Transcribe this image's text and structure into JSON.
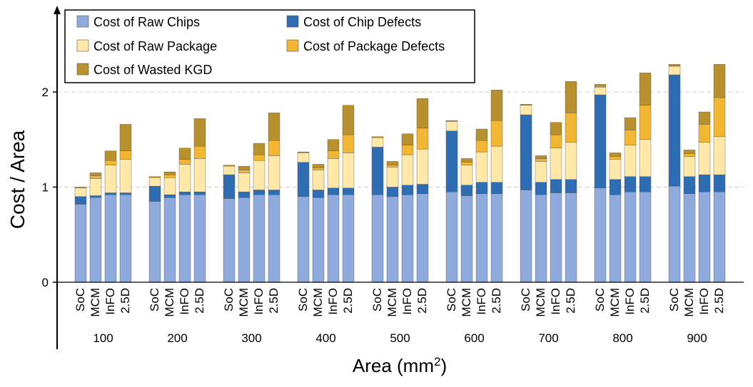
{
  "chart_data": {
    "type": "stacked_bar",
    "ylabel": "Cost / Area",
    "xlabel_main": "Area (mm",
    "xlabel_sup": "2",
    "xlabel_close": ")",
    "ylim": [
      0,
      2.55
    ],
    "yticks": [
      "0",
      "1",
      "2"
    ],
    "legend_position": "top-left",
    "layers": [
      {
        "key": "raw_chips",
        "name": "Cost of Raw Chips",
        "color": "#8FAADC"
      },
      {
        "key": "chip_defects",
        "name": "Cost of Chip Defects",
        "color": "#2E6DB4"
      },
      {
        "key": "raw_package",
        "name": "Cost of Raw Package",
        "color": "#FFE8A8"
      },
      {
        "key": "package_defects",
        "name": "Cost of Package Defects",
        "color": "#F2B632"
      },
      {
        "key": "wasted_kgd",
        "name": "Cost of Wasted KGD",
        "color": "#B8902E"
      }
    ],
    "groups": [
      {
        "label": "100",
        "bars": [
          {
            "name": "SoC",
            "raw_chips": 0.82,
            "chip_defects": 0.08,
            "raw_package": 0.09,
            "package_defects": 0.0,
            "wasted_kgd": 0.01
          },
          {
            "name": "MCM",
            "raw_chips": 0.89,
            "chip_defects": 0.02,
            "raw_package": 0.18,
            "package_defects": 0.03,
            "wasted_kgd": 0.03
          },
          {
            "name": "InFO",
            "raw_chips": 0.92,
            "chip_defects": 0.02,
            "raw_package": 0.29,
            "package_defects": 0.05,
            "wasted_kgd": 0.1
          },
          {
            "name": "2.5D",
            "raw_chips": 0.92,
            "chip_defects": 0.02,
            "raw_package": 0.35,
            "package_defects": 0.09,
            "wasted_kgd": 0.28
          }
        ]
      },
      {
        "label": "200",
        "bars": [
          {
            "name": "SoC",
            "raw_chips": 0.85,
            "chip_defects": 0.16,
            "raw_package": 0.09,
            "package_defects": 0.0,
            "wasted_kgd": 0.01
          },
          {
            "name": "MCM",
            "raw_chips": 0.89,
            "chip_defects": 0.03,
            "raw_package": 0.18,
            "package_defects": 0.03,
            "wasted_kgd": 0.03
          },
          {
            "name": "InFO",
            "raw_chips": 0.92,
            "chip_defects": 0.03,
            "raw_package": 0.29,
            "package_defects": 0.05,
            "wasted_kgd": 0.12
          },
          {
            "name": "2.5D",
            "raw_chips": 0.92,
            "chip_defects": 0.03,
            "raw_package": 0.35,
            "package_defects": 0.13,
            "wasted_kgd": 0.29
          }
        ]
      },
      {
        "label": "300",
        "bars": [
          {
            "name": "SoC",
            "raw_chips": 0.88,
            "chip_defects": 0.25,
            "raw_package": 0.09,
            "package_defects": 0.0,
            "wasted_kgd": 0.01
          },
          {
            "name": "MCM",
            "raw_chips": 0.89,
            "chip_defects": 0.06,
            "raw_package": 0.2,
            "package_defects": 0.03,
            "wasted_kgd": 0.04
          },
          {
            "name": "InFO",
            "raw_chips": 0.92,
            "chip_defects": 0.05,
            "raw_package": 0.31,
            "package_defects": 0.06,
            "wasted_kgd": 0.12
          },
          {
            "name": "2.5D",
            "raw_chips": 0.92,
            "chip_defects": 0.05,
            "raw_package": 0.36,
            "package_defects": 0.16,
            "wasted_kgd": 0.29
          }
        ]
      },
      {
        "label": "400",
        "bars": [
          {
            "name": "SoC",
            "raw_chips": 0.9,
            "chip_defects": 0.36,
            "raw_package": 0.1,
            "package_defects": 0.0,
            "wasted_kgd": 0.01
          },
          {
            "name": "MCM",
            "raw_chips": 0.89,
            "chip_defects": 0.08,
            "raw_package": 0.21,
            "package_defects": 0.02,
            "wasted_kgd": 0.04
          },
          {
            "name": "InFO",
            "raw_chips": 0.92,
            "chip_defects": 0.07,
            "raw_package": 0.31,
            "package_defects": 0.08,
            "wasted_kgd": 0.12
          },
          {
            "name": "2.5D",
            "raw_chips": 0.92,
            "chip_defects": 0.07,
            "raw_package": 0.37,
            "package_defects": 0.19,
            "wasted_kgd": 0.31
          }
        ]
      },
      {
        "label": "500",
        "bars": [
          {
            "name": "SoC",
            "raw_chips": 0.92,
            "chip_defects": 0.5,
            "raw_package": 0.1,
            "package_defects": 0.0,
            "wasted_kgd": 0.01
          },
          {
            "name": "MCM",
            "raw_chips": 0.9,
            "chip_defects": 0.1,
            "raw_package": 0.21,
            "package_defects": 0.02,
            "wasted_kgd": 0.04
          },
          {
            "name": "InFO",
            "raw_chips": 0.92,
            "chip_defects": 0.1,
            "raw_package": 0.32,
            "package_defects": 0.1,
            "wasted_kgd": 0.12
          },
          {
            "name": "2.5D",
            "raw_chips": 0.93,
            "chip_defects": 0.1,
            "raw_package": 0.37,
            "package_defects": 0.22,
            "wasted_kgd": 0.31
          }
        ]
      },
      {
        "label": "600",
        "bars": [
          {
            "name": "SoC",
            "raw_chips": 0.95,
            "chip_defects": 0.64,
            "raw_package": 0.1,
            "package_defects": 0.0,
            "wasted_kgd": 0.01
          },
          {
            "name": "MCM",
            "raw_chips": 0.91,
            "chip_defects": 0.11,
            "raw_package": 0.21,
            "package_defects": 0.03,
            "wasted_kgd": 0.04
          },
          {
            "name": "InFO",
            "raw_chips": 0.93,
            "chip_defects": 0.12,
            "raw_package": 0.32,
            "package_defects": 0.12,
            "wasted_kgd": 0.12
          },
          {
            "name": "2.5D",
            "raw_chips": 0.93,
            "chip_defects": 0.12,
            "raw_package": 0.38,
            "package_defects": 0.27,
            "wasted_kgd": 0.32
          }
        ]
      },
      {
        "label": "700",
        "bars": [
          {
            "name": "SoC",
            "raw_chips": 0.97,
            "chip_defects": 0.79,
            "raw_package": 0.1,
            "package_defects": 0.0,
            "wasted_kgd": 0.01
          },
          {
            "name": "MCM",
            "raw_chips": 0.92,
            "chip_defects": 0.13,
            "raw_package": 0.22,
            "package_defects": 0.03,
            "wasted_kgd": 0.03
          },
          {
            "name": "InFO",
            "raw_chips": 0.94,
            "chip_defects": 0.14,
            "raw_package": 0.33,
            "package_defects": 0.14,
            "wasted_kgd": 0.13
          },
          {
            "name": "2.5D",
            "raw_chips": 0.94,
            "chip_defects": 0.14,
            "raw_package": 0.39,
            "package_defects": 0.31,
            "wasted_kgd": 0.33
          }
        ]
      },
      {
        "label": "800",
        "bars": [
          {
            "name": "SoC",
            "raw_chips": 0.99,
            "chip_defects": 0.98,
            "raw_package": 0.08,
            "package_defects": 0.0,
            "wasted_kgd": 0.03
          },
          {
            "name": "MCM",
            "raw_chips": 0.92,
            "chip_defects": 0.16,
            "raw_package": 0.21,
            "package_defects": 0.03,
            "wasted_kgd": 0.04
          },
          {
            "name": "InFO",
            "raw_chips": 0.95,
            "chip_defects": 0.16,
            "raw_package": 0.33,
            "package_defects": 0.16,
            "wasted_kgd": 0.13
          },
          {
            "name": "2.5D",
            "raw_chips": 0.95,
            "chip_defects": 0.16,
            "raw_package": 0.39,
            "package_defects": 0.36,
            "wasted_kgd": 0.34
          }
        ]
      },
      {
        "label": "900",
        "bars": [
          {
            "name": "SoC",
            "raw_chips": 1.01,
            "chip_defects": 1.17,
            "raw_package": 0.09,
            "package_defects": 0.0,
            "wasted_kgd": 0.02
          },
          {
            "name": "MCM",
            "raw_chips": 0.93,
            "chip_defects": 0.18,
            "raw_package": 0.21,
            "package_defects": 0.03,
            "wasted_kgd": 0.04
          },
          {
            "name": "InFO",
            "raw_chips": 0.95,
            "chip_defects": 0.18,
            "raw_package": 0.34,
            "package_defects": 0.19,
            "wasted_kgd": 0.13
          },
          {
            "name": "2.5D",
            "raw_chips": 0.95,
            "chip_defects": 0.18,
            "raw_package": 0.4,
            "package_defects": 0.41,
            "wasted_kgd": 0.35
          }
        ]
      }
    ]
  }
}
